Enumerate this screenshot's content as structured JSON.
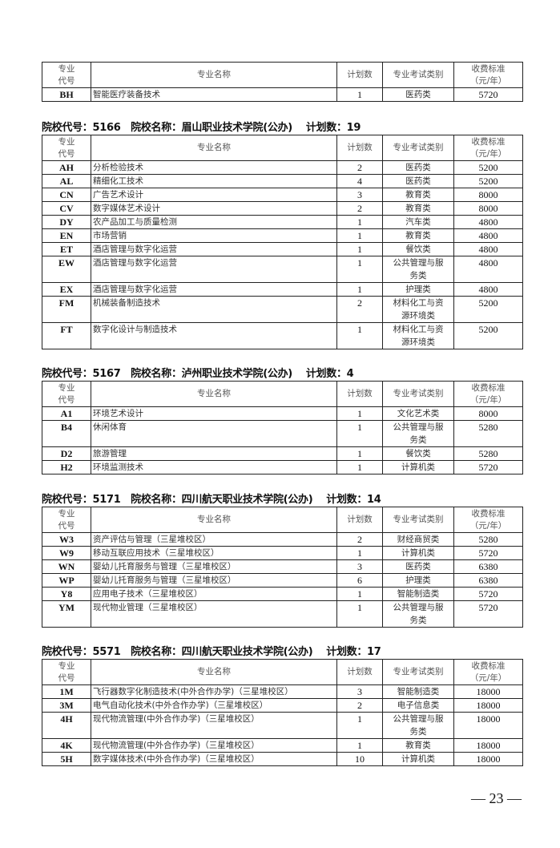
{
  "columns": {
    "code": "专业\n代号",
    "name": "专业名称",
    "plan": "计划数",
    "category": "专业考试类别",
    "fee": "收费标准\n（元/年）"
  },
  "sections": [
    {
      "title": "",
      "rows": [
        [
          "BH",
          "智能医疗装备技术",
          "1",
          "医药类",
          "5720"
        ]
      ]
    },
    {
      "title": "院校代号：5166   院校名称：眉山职业技术学院(公办)    计划数：19",
      "rows": [
        [
          "AH",
          "分析检验技术",
          "2",
          "医药类",
          "5200"
        ],
        [
          "AL",
          "精细化工技术",
          "4",
          "医药类",
          "5200"
        ],
        [
          "CN",
          "广告艺术设计",
          "3",
          "教育类",
          "8000"
        ],
        [
          "CV",
          "数字媒体艺术设计",
          "2",
          "教育类",
          "8000"
        ],
        [
          "DY",
          "农产品加工与质量检测",
          "1",
          "汽车类",
          "4800"
        ],
        [
          "EN",
          "市场营销",
          "1",
          "教育类",
          "4800"
        ],
        [
          "ET",
          "酒店管理与数字化运营",
          "1",
          "餐饮类",
          "4800"
        ],
        [
          "EW",
          "酒店管理与数字化运营",
          "1",
          "公共管理与服务类",
          "4800"
        ],
        [
          "EX",
          "酒店管理与数字化运营",
          "1",
          "护理类",
          "4800"
        ],
        [
          "FM",
          "机械装备制造技术",
          "2",
          "材料化工与资源环境类",
          "5200"
        ],
        [
          "FT",
          "数字化设计与制造技术",
          "1",
          "材料化工与资源环境类",
          "5200"
        ]
      ]
    },
    {
      "title": "院校代号：5167   院校名称：泸州职业技术学院(公办)    计划数：4",
      "rows": [
        [
          "A1",
          "环境艺术设计",
          "1",
          "文化艺术类",
          "8000"
        ],
        [
          "B4",
          "休闲体育",
          "1",
          "公共管理与服务类",
          "5280"
        ],
        [
          "D2",
          "旅游管理",
          "1",
          "餐饮类",
          "5280"
        ],
        [
          "H2",
          "环境监测技术",
          "1",
          "计算机类",
          "5720"
        ]
      ]
    },
    {
      "title": "院校代号：5171   院校名称：四川航天职业技术学院(公办)    计划数：14",
      "rows": [
        [
          "W3",
          "资产评估与管理（三星堆校区）",
          "2",
          "财经商贸类",
          "5280"
        ],
        [
          "W9",
          "移动互联应用技术（三星堆校区）",
          "1",
          "计算机类",
          "5720"
        ],
        [
          "WN",
          "婴幼儿托育服务与管理（三星堆校区）",
          "3",
          "医药类",
          "6380"
        ],
        [
          "WP",
          "婴幼儿托育服务与管理（三星堆校区）",
          "6",
          "护理类",
          "6380"
        ],
        [
          "Y8",
          "应用电子技术（三星堆校区）",
          "1",
          "智能制造类",
          "5720"
        ],
        [
          "YM",
          "现代物业管理（三星堆校区）",
          "1",
          "公共管理与服务类",
          "5720"
        ]
      ]
    },
    {
      "title": "院校代号：5571   院校名称：四川航天职业技术学院(公办)    计划数：17",
      "rows": [
        [
          "1M",
          "飞行器数字化制造技术(中外合作办学)（三星堆校区）",
          "3",
          "智能制造类",
          "18000"
        ],
        [
          "3M",
          "电气自动化技术(中外合作办学)（三星堆校区）",
          "2",
          "电子信息类",
          "18000"
        ],
        [
          "4H",
          "现代物流管理(中外合作办学)（三星堆校区）",
          "1",
          "公共管理与服务类",
          "18000"
        ],
        [
          "4K",
          "现代物流管理(中外合作办学)（三星堆校区）",
          "1",
          "教育类",
          "18000"
        ],
        [
          "5H",
          "数字媒体技术(中外合作办学)（三星堆校区）",
          "10",
          "计算机类",
          "18000"
        ]
      ]
    }
  ],
  "page_number": "— 23 —"
}
